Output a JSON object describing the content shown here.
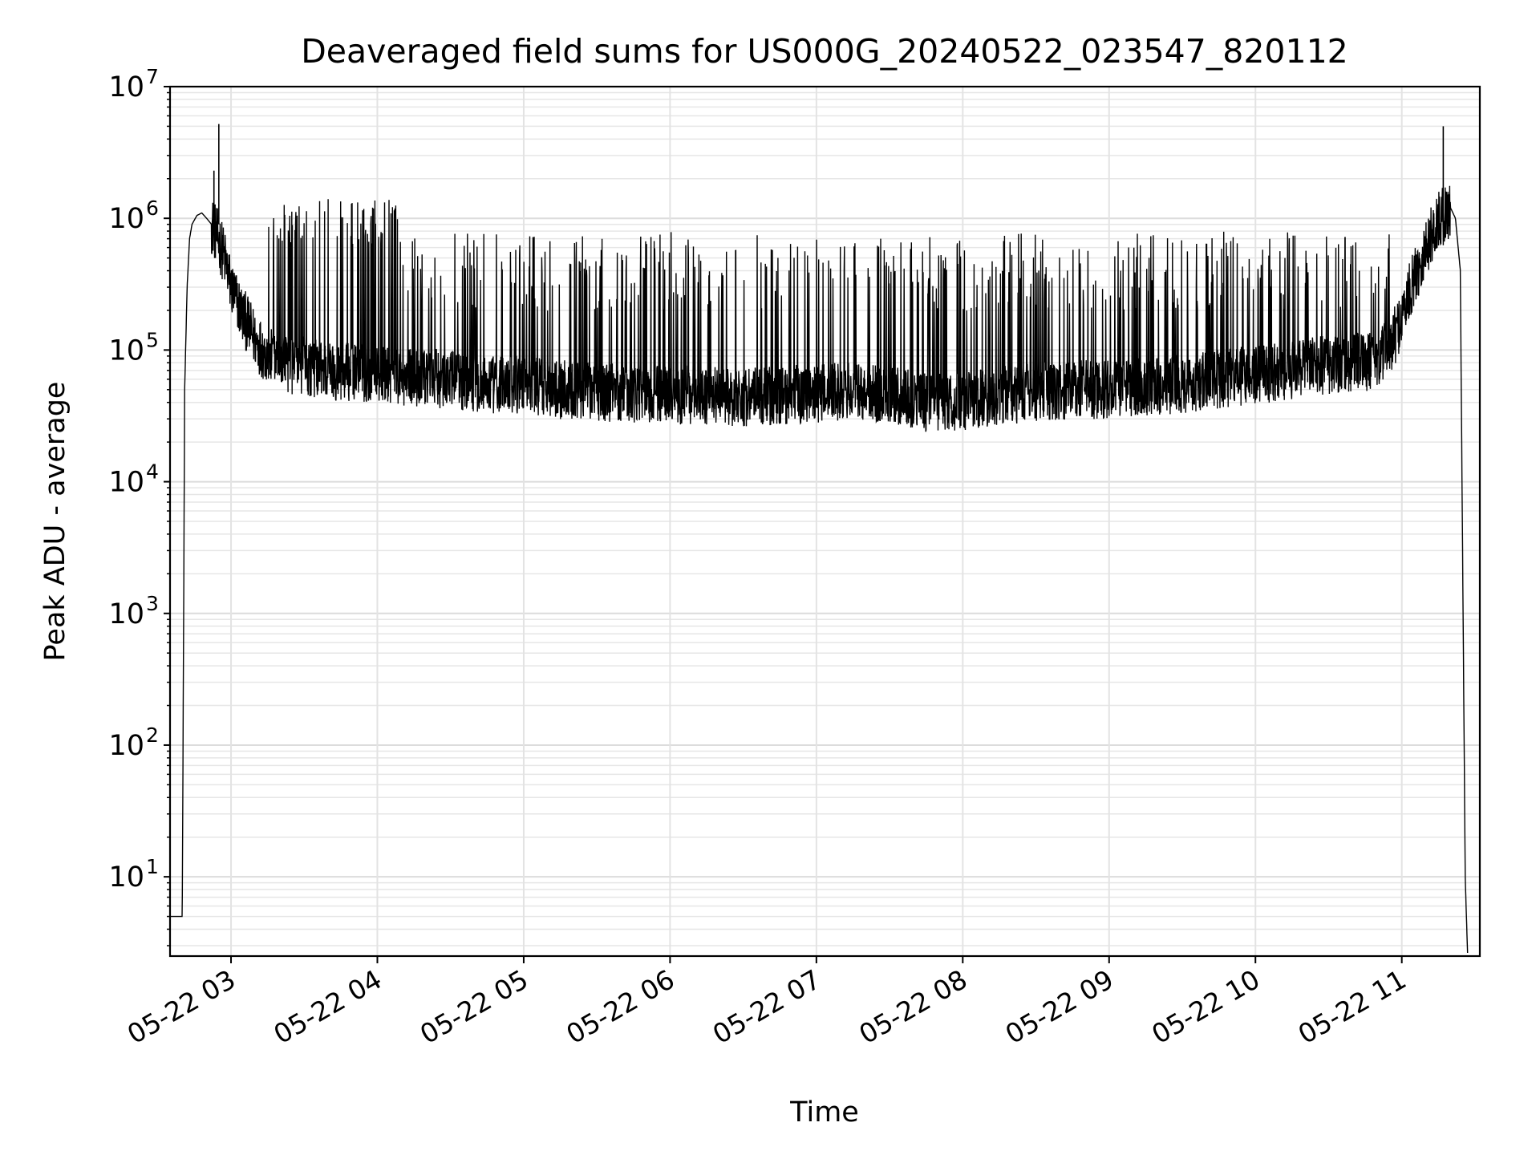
{
  "chart_data": {
    "type": "line",
    "title": "Deaveraged field sums for US000G_20240522_023547_820112",
    "xlabel": "Time",
    "ylabel": "Peak ADU - average",
    "yscale": "log",
    "ylim": [
      2.5,
      10000000
    ],
    "xlim": [
      "05-22 02:35",
      "05-22 11:32"
    ],
    "grid": "on (major and minor)",
    "y_ticks": [
      {
        "exp": 1,
        "value": 10
      },
      {
        "exp": 2,
        "value": 100
      },
      {
        "exp": 3,
        "value": 1000
      },
      {
        "exp": 4,
        "value": 10000
      },
      {
        "exp": 5,
        "value": 100000
      },
      {
        "exp": 6,
        "value": 1000000
      },
      {
        "exp": 7,
        "value": 10000000
      }
    ],
    "x_ticks": [
      {
        "label": "05-22 03",
        "hour": 3
      },
      {
        "label": "05-22 04",
        "hour": 4
      },
      {
        "label": "05-22 05",
        "hour": 5
      },
      {
        "label": "05-22 06",
        "hour": 6
      },
      {
        "label": "05-22 07",
        "hour": 7
      },
      {
        "label": "05-22 08",
        "hour": 8
      },
      {
        "label": "05-22 09",
        "hour": 9
      },
      {
        "label": "05-22 10",
        "hour": 10
      },
      {
        "label": "05-22 11",
        "hour": 11
      }
    ],
    "series": [
      {
        "color": "#000000",
        "x": [
          "05-22 02:35",
          "05-22 02:40",
          "05-22 02:41",
          "05-22 02:42",
          "05-22 02:43",
          "05-22 02:44",
          "05-22 02:46",
          "05-22 02:48",
          "05-22 02:50",
          "05-22 02:52",
          "05-22 02:54",
          "05-22 02:56",
          "05-22 02:58",
          "05-22 03:00",
          "05-22 03:05",
          "05-22 03:10",
          "05-22 03:15",
          "05-22 03:20",
          "05-22 03:30",
          "05-22 03:40",
          "05-22 03:50",
          "05-22 04:00",
          "05-22 04:15",
          "05-22 04:30",
          "05-22 04:45",
          "05-22 05:00",
          "05-22 05:15",
          "05-22 05:30",
          "05-22 05:45",
          "05-22 06:00",
          "05-22 06:15",
          "05-22 06:30",
          "05-22 06:45",
          "05-22 07:00",
          "05-22 07:15",
          "05-22 07:30",
          "05-22 07:45",
          "05-22 08:00",
          "05-22 08:15",
          "05-22 08:30",
          "05-22 08:45",
          "05-22 09:00",
          "05-22 09:15",
          "05-22 09:30",
          "05-22 09:45",
          "05-22 10:00",
          "05-22 10:15",
          "05-22 10:30",
          "05-22 10:45",
          "05-22 10:55",
          "05-22 11:00",
          "05-22 11:05",
          "05-22 11:10",
          "05-22 11:14",
          "05-22 11:18",
          "05-22 11:20",
          "05-22 11:22",
          "05-22 11:24",
          "05-22 11:26",
          "05-22 11:27"
        ],
        "y": [
          5,
          5,
          50000,
          300000,
          700000,
          900000,
          1050000,
          1100000,
          1000000,
          900000,
          750000,
          600000,
          450000,
          300000,
          180000,
          120000,
          90000,
          80000,
          75000,
          70000,
          68000,
          65000,
          62000,
          60000,
          55000,
          55000,
          50000,
          48000,
          47000,
          46000,
          45000,
          44000,
          45000,
          47000,
          48000,
          45000,
          40000,
          40000,
          45000,
          48000,
          50000,
          50000,
          52000,
          55000,
          60000,
          65000,
          70000,
          78000,
          80000,
          100000,
          180000,
          350000,
          600000,
          900000,
          1100000,
          1200000,
          1000000,
          400000,
          10,
          2.5
        ]
      }
    ]
  }
}
